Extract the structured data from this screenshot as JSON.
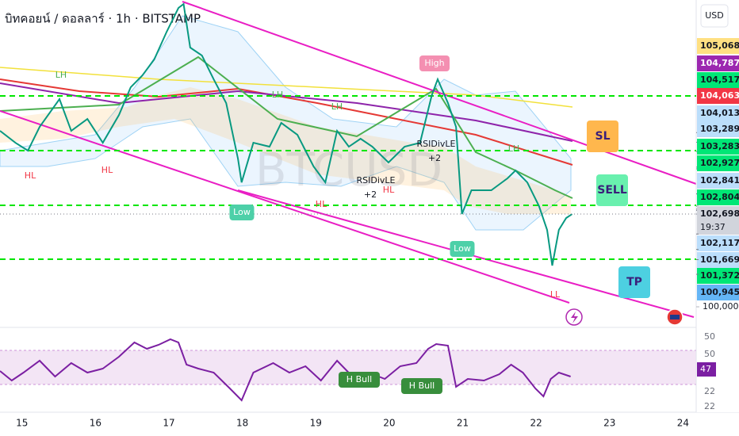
{
  "chart_data": [
    {
      "type": "line",
      "title": "บิทคอยน์ / ดอลลาร์ · 1h · BITSTAMP",
      "currency_button": "USD",
      "watermark": "BTCUSD",
      "x": [
        14.7,
        14.91,
        15.08,
        15.24,
        15.51,
        15.67,
        15.89,
        16.1,
        16.32,
        16.48,
        16.64,
        16.8,
        16.97,
        17.13,
        17.2,
        17.29,
        17.45,
        17.61,
        17.78,
        17.94,
        17.99,
        18.15,
        18.37,
        18.53,
        18.75,
        18.97,
        19.13,
        19.29,
        19.45,
        19.61,
        19.77,
        19.99,
        20.21,
        20.42,
        20.58,
        20.66,
        20.8,
        20.91,
        20.99,
        21.12,
        21.39,
        21.61,
        21.72,
        21.88,
        22.04,
        22.15,
        22.22,
        22.31,
        22.41,
        22.49
      ],
      "series": [
        {
          "color": "#089981",
          "values": [
            105119,
            104773,
            104543,
            105235,
            106042,
            105119,
            105465,
            104773,
            105581,
            106388,
            106734,
            107195,
            108002,
            108694,
            108809,
            107541,
            107310,
            106618,
            105926,
            104312,
            103620,
            104773,
            104658,
            105350,
            105004,
            104082,
            103620,
            105119,
            104658,
            104889,
            104658,
            104197,
            104658,
            104773,
            106157,
            106618,
            105926,
            105235,
            102698,
            103390,
            103390,
            103736,
            103966,
            103620,
            102929,
            102237,
            101199,
            102237,
            102583,
            102698
          ]
        }
      ],
      "xlim": [
        14.7,
        24.18
      ],
      "xticks": [
        15,
        16,
        17,
        18,
        19,
        20,
        21,
        22,
        23,
        24
      ],
      "ylim": [
        99470,
        108925
      ],
      "yticks": [
        {
          "value": 100000,
          "label": "100,000"
        }
      ],
      "grid": false,
      "levels": [
        106134,
        104543,
        102952,
        101384
      ],
      "level_color": "#00e600",
      "countdown": "19:37",
      "price_labels": [
        {
          "value": 105068,
          "label": "105,068",
          "color": "#ffe082"
        },
        {
          "value": 104787,
          "label": "104,787",
          "color": "#9c27b0"
        },
        {
          "value": 104517,
          "label": "104,517",
          "color": "#00e676"
        },
        {
          "value": 104063,
          "label": "104,063",
          "color": "#f23645"
        },
        {
          "value": 104013,
          "label": "104,013",
          "color": "#bbdefb"
        },
        {
          "value": 103289,
          "label": "103,289",
          "color": "#bbdefb"
        },
        {
          "value": 103283,
          "label": "103,283",
          "color": "#00e676"
        },
        {
          "value": 102927,
          "label": "102,927",
          "color": "#00e676"
        },
        {
          "value": 102841,
          "label": "102,841",
          "color": "#bbdefb"
        },
        {
          "value": 102804,
          "label": "102,804",
          "color": "#00e676"
        },
        {
          "value": 102698,
          "label": "102,698",
          "color": "#d1d4dc"
        },
        {
          "value": 102117,
          "label": "102,117",
          "color": "#bbdefb"
        },
        {
          "value": 101669,
          "label": "101,669",
          "color": "#bbdefb"
        },
        {
          "value": 101372,
          "label": "101,372",
          "color": "#00e676"
        },
        {
          "value": 100945,
          "label": "100,945",
          "color": "#64b5f6"
        }
      ],
      "annotations": [
        "HL",
        "LH",
        "HL",
        "LH",
        "LH",
        "HL",
        "HL",
        "LH",
        "LL",
        "RSIDivLE",
        "+2",
        "RSIDivLE",
        "+2",
        "High",
        "Low",
        "Low",
        "SL",
        "SELL",
        "TP",
        "H Bull",
        "H Bull"
      ]
    },
    {
      "type": "line",
      "x": [
        14.7,
        14.86,
        15.02,
        15.24,
        15.45,
        15.67,
        15.89,
        16.1,
        16.32,
        16.53,
        16.7,
        16.86,
        17.02,
        17.13,
        17.24,
        17.4,
        17.61,
        17.83,
        17.99,
        18.15,
        18.42,
        18.64,
        18.86,
        19.07,
        19.29,
        19.5,
        19.72,
        19.94,
        20.15,
        20.37,
        20.53,
        20.64,
        20.8,
        20.91,
        21.07,
        21.29,
        21.5,
        21.66,
        21.82,
        21.99,
        22.1,
        22.2,
        22.31,
        22.47
      ],
      "series": [
        {
          "color": "#7b1fa2",
          "values": [
            51.2,
            44,
            50,
            59,
            47,
            57.2,
            50,
            53,
            62,
            72.8,
            68,
            71,
            75.2,
            72.8,
            56,
            53,
            50,
            38,
            29,
            50,
            57.2,
            50,
            54.8,
            44,
            59,
            47,
            50,
            45.2,
            54.8,
            57.2,
            68,
            71.6,
            70.4,
            39.2,
            45.2,
            44,
            48.8,
            56,
            50,
            38,
            32,
            45.2,
            50,
            47
          ]
        }
      ],
      "xlim": [
        14.7,
        24.18
      ],
      "ylim": [
        20,
        80
      ],
      "axis_labels": [
        50,
        50,
        22,
        22
      ]
    }
  ]
}
